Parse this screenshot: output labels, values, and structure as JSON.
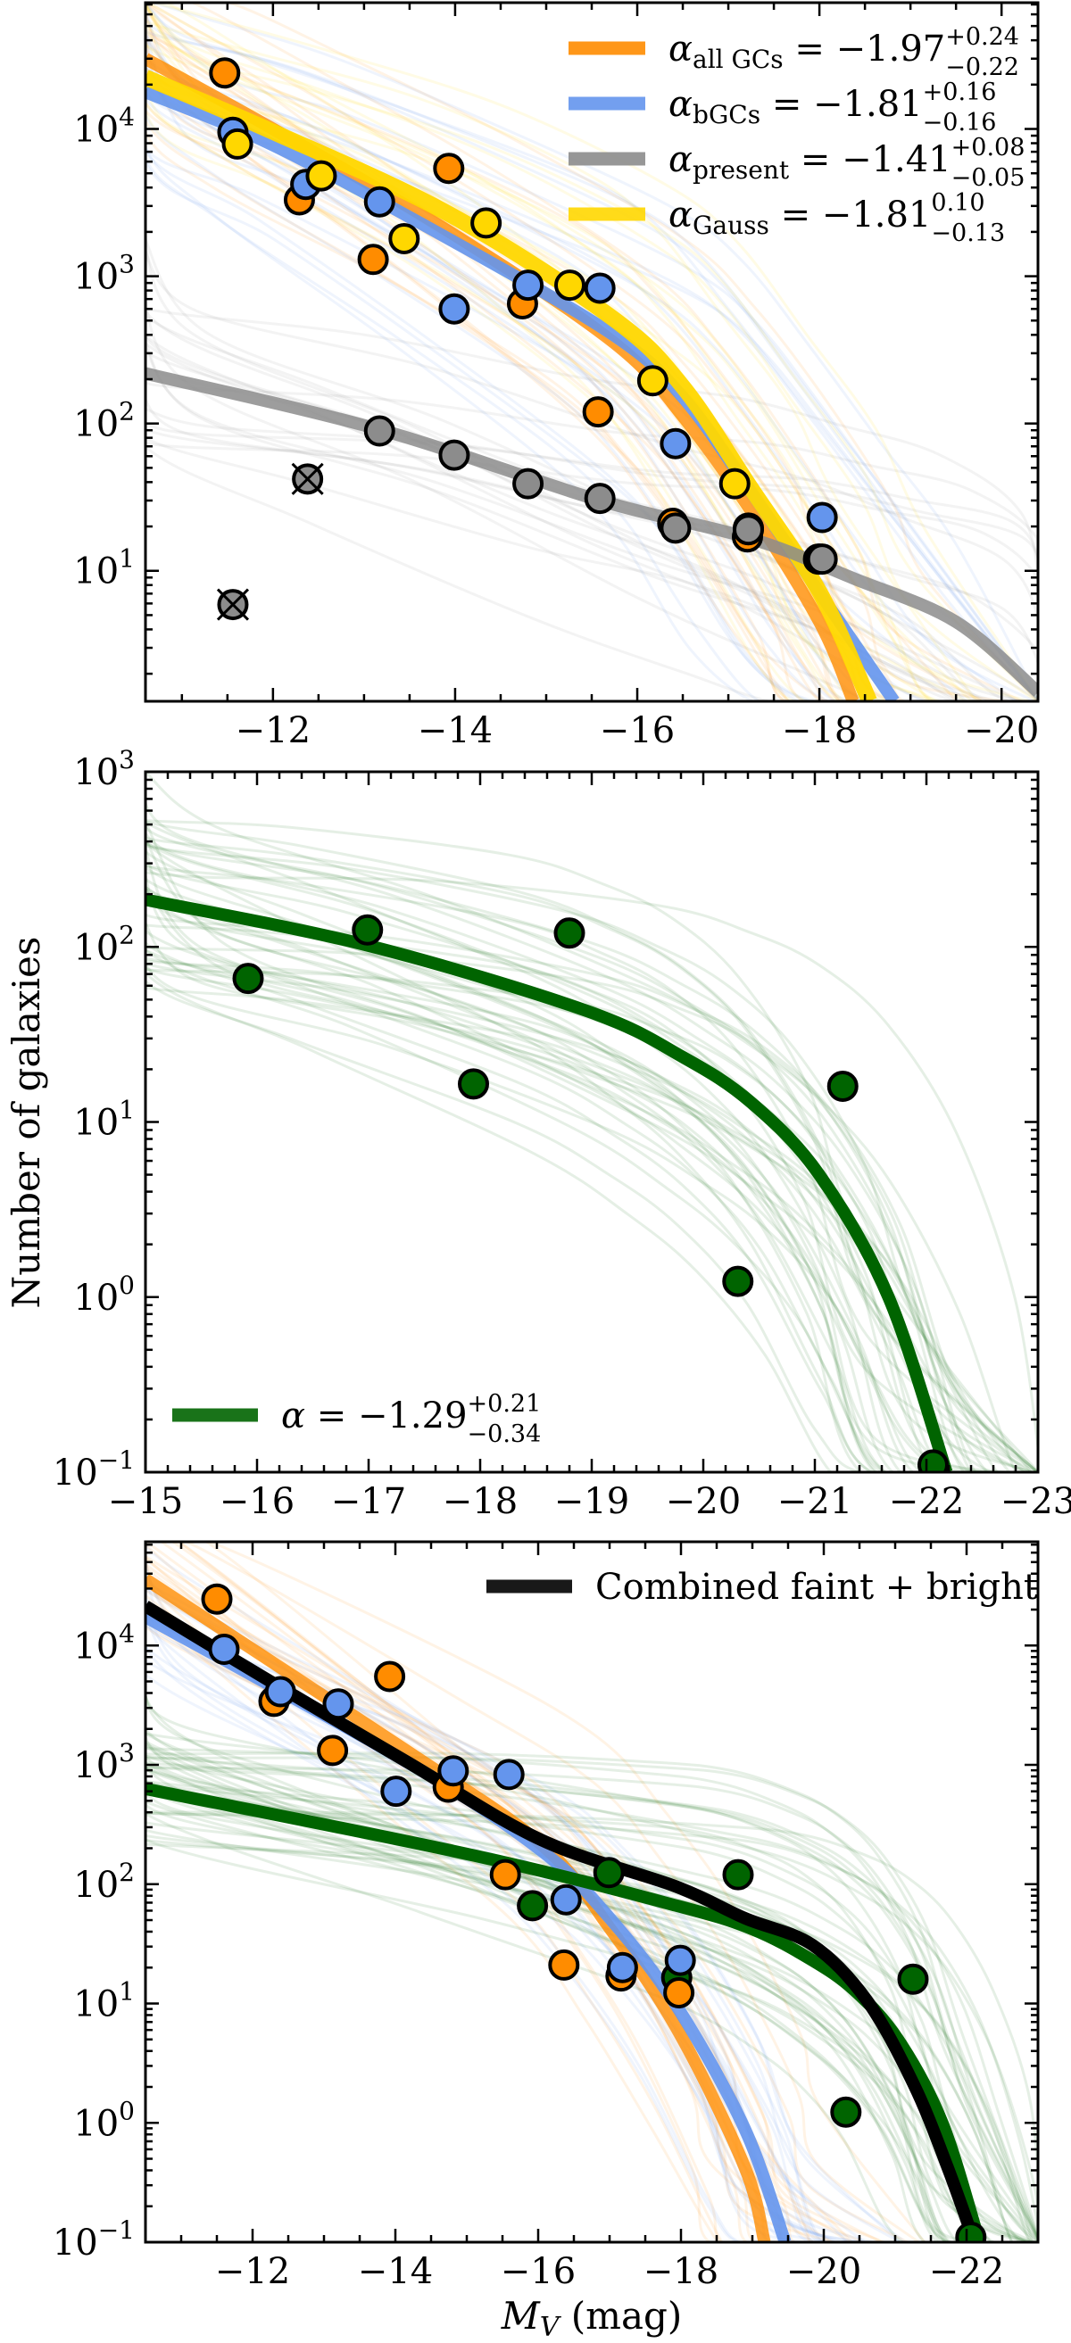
{
  "figure": {
    "ylabel": "Number of galaxies",
    "xlabel_main": "M",
    "xlabel_sub": "V",
    "xlabel_unit": " (mag)"
  },
  "colors": {
    "all_gcs": "#ff8c00",
    "bgcs": "#6495ed",
    "present": "#8c8c8c",
    "gauss": "#ffd700",
    "bright": "#006400",
    "combined": "#000000"
  },
  "chart_data": [
    {
      "type": "scatter+line",
      "xlim": [
        -10.6,
        -20.4
      ],
      "ylim": [
        1.3,
        72000
      ],
      "yscale": "log",
      "xticks": [
        -12,
        -14,
        -16,
        -18,
        -20
      ],
      "xtick_labels": [
        "−12",
        "−14",
        "−16",
        "−18",
        "−20"
      ],
      "yticks": [
        10,
        100,
        1000,
        10000
      ],
      "ytick_labels": [
        {
          "base": "10",
          "exp": "1"
        },
        {
          "base": "10",
          "exp": "2"
        },
        {
          "base": "10",
          "exp": "3"
        },
        {
          "base": "10",
          "exp": "4"
        }
      ],
      "legend_position": "top-right",
      "legend": [
        {
          "key": "all_gcs",
          "symbol": "α",
          "sub": "all GCs",
          "value": " = −1.97",
          "sup": "+0.24",
          "low": "−0.22"
        },
        {
          "key": "bgcs",
          "symbol": "α",
          "sub": "bGCs",
          "value": " = −1.81",
          "sup": "+0.16",
          "low": "−0.16"
        },
        {
          "key": "present",
          "symbol": "α",
          "sub": "present",
          "value": " = −1.41",
          "sup": "+0.08",
          "low": "−0.05"
        },
        {
          "key": "gauss",
          "symbol": "α",
          "sub": "Gauss",
          "value": " = −1.81",
          "sup": "0.10",
          "low": "−0.13"
        }
      ],
      "lines": [
        {
          "key": "all_gcs",
          "points": [
            [
              -10.6,
              30000
            ],
            [
              -12,
              10000
            ],
            [
              -13.94,
              2000
            ],
            [
              -15.74,
              355
            ],
            [
              -16.5,
              112
            ],
            [
              -17.24,
              26
            ],
            [
              -18,
              4.5
            ],
            [
              -18.37,
              1.3
            ]
          ]
        },
        {
          "key": "bgcs",
          "points": [
            [
              -10.6,
              17800
            ],
            [
              -12,
              7760
            ],
            [
              -13.94,
              1780
            ],
            [
              -15.74,
              398
            ],
            [
              -16.5,
              151
            ],
            [
              -17.24,
              35
            ],
            [
              -18,
              7.1
            ],
            [
              -18.82,
              1.3
            ]
          ]
        },
        {
          "key": "gauss",
          "points": [
            [
              -10.6,
              22400
            ],
            [
              -12,
              9550
            ],
            [
              -13.94,
              2630
            ],
            [
              -15.74,
              513
            ],
            [
              -16.5,
              178
            ],
            [
              -17.24,
              37
            ],
            [
              -18,
              7.2
            ],
            [
              -18.55,
              1.3
            ]
          ]
        },
        {
          "key": "present",
          "points": [
            [
              -10.6,
              219
            ],
            [
              -13.17,
              91
            ],
            [
              -15.59,
              30
            ],
            [
              -17.24,
              16.6
            ],
            [
              -18.37,
              8.9
            ],
            [
              -19.5,
              4.5
            ],
            [
              -20.4,
              1.5
            ]
          ]
        }
      ],
      "points": [
        {
          "key": "all_gcs",
          "x": [
            -11.47,
            -12.29,
            -13.1,
            -13.93,
            -14.74,
            -15.57,
            -16.39,
            -17.21,
            -17.99
          ],
          "y": [
            24000,
            3300,
            1300,
            5400,
            650,
            120,
            21,
            17,
            12
          ]
        },
        {
          "key": "bgcs",
          "x": [
            -11.56,
            -12.36,
            -13.17,
            -13.99,
            -14.8,
            -15.59,
            -16.42,
            -17.22,
            -18.03
          ],
          "y": [
            9500,
            4200,
            3200,
            600,
            870,
            830,
            73,
            19.5,
            23
          ]
        },
        {
          "key": "gauss",
          "x": [
            -11.61,
            -12.53,
            -13.44,
            -14.34,
            -15.26,
            -16.17,
            -17.07,
            -18.0
          ],
          "y": [
            7900,
            4800,
            1800,
            2300,
            870,
            195,
            39,
            12
          ]
        },
        {
          "key": "present",
          "x": [
            -13.17,
            -13.99,
            -14.8,
            -15.59,
            -16.42,
            -17.22,
            -18.03
          ],
          "y": [
            89,
            61,
            39,
            31,
            19.5,
            19,
            12
          ]
        },
        {
          "key": "present",
          "excluded": true,
          "x": [
            -11.56,
            -12.38
          ],
          "y": [
            5.9,
            42
          ]
        }
      ]
    },
    {
      "type": "scatter+line",
      "xlim": [
        -15,
        -23
      ],
      "ylim": [
        0.1,
        1000
      ],
      "yscale": "log",
      "xticks": [
        -15,
        -16,
        -17,
        -18,
        -19,
        -20,
        -21,
        -22,
        -23
      ],
      "xtick_labels": [
        "−15",
        "−16",
        "−17",
        "−18",
        "−19",
        "−20",
        "−21",
        "−22",
        "−23"
      ],
      "yticks": [
        0.1,
        1,
        10,
        100,
        1000
      ],
      "ytick_labels": [
        {
          "base": "10",
          "exp": "−1"
        },
        {
          "base": "10",
          "exp": "0"
        },
        {
          "base": "10",
          "exp": "1"
        },
        {
          "base": "10",
          "exp": "2"
        },
        {
          "base": "10",
          "exp": "3"
        }
      ],
      "legend_position": "bottom-left",
      "legend": [
        {
          "key": "bright",
          "symbol": "α",
          "sub": "",
          "value": " = −1.29",
          "sup": "+0.21",
          "low": "−0.34"
        }
      ],
      "lines": [
        {
          "key": "bright",
          "points": [
            [
              -15,
              186
            ],
            [
              -16.99,
              102
            ],
            [
              -18.96,
              43
            ],
            [
              -19.82,
              23.4
            ],
            [
              -20.43,
              12.9
            ],
            [
              -21.04,
              5.0
            ],
            [
              -21.66,
              1.0
            ],
            [
              -22.18,
              0.1
            ]
          ]
        }
      ],
      "points": [
        {
          "key": "bright",
          "x": [
            -15.92,
            -16.99,
            -17.94,
            -18.8,
            -20.31,
            -21.25,
            -22.06
          ],
          "y": [
            66,
            125,
            16.5,
            120,
            1.23,
            16,
            0.11
          ]
        }
      ]
    },
    {
      "type": "scatter+line",
      "xlim": [
        -10.5,
        -23
      ],
      "ylim": [
        0.1,
        74000
      ],
      "yscale": "log",
      "xticks": [
        -12,
        -14,
        -16,
        -18,
        -20,
        -22
      ],
      "xtick_labels": [
        "−12",
        "−14",
        "−16",
        "−18",
        "−20",
        "−22"
      ],
      "yticks": [
        0.1,
        1,
        10,
        100,
        1000,
        10000
      ],
      "ytick_labels": [
        {
          "base": "10",
          "exp": "−1"
        },
        {
          "base": "10",
          "exp": "0"
        },
        {
          "base": "10",
          "exp": "1"
        },
        {
          "base": "10",
          "exp": "2"
        },
        {
          "base": "10",
          "exp": "3"
        },
        {
          "base": "10",
          "exp": "4"
        }
      ],
      "legend_position": "top-right",
      "legend": [
        {
          "key": "combined",
          "text": "Combined faint + bright"
        }
      ],
      "lines": [
        {
          "key": "all_gcs",
          "points": [
            [
              -10.5,
              36000
            ],
            [
              -14.15,
              1320
            ],
            [
              -16.05,
              214
            ],
            [
              -17,
              43
            ],
            [
              -17.94,
              6.2
            ],
            [
              -18.89,
              0.43
            ],
            [
              -19.17,
              0.1
            ]
          ]
        },
        {
          "key": "bgcs",
          "points": [
            [
              -10.5,
              17400
            ],
            [
              -14.15,
              1070
            ],
            [
              -16.05,
              190
            ],
            [
              -17,
              52
            ],
            [
              -17.94,
              9.5
            ],
            [
              -18.89,
              0.9
            ],
            [
              -19.46,
              0.1
            ]
          ]
        },
        {
          "key": "bright",
          "points": [
            [
              -10.5,
              630
            ],
            [
              -15.1,
              174
            ],
            [
              -17.94,
              66
            ],
            [
              -19.0,
              42
            ],
            [
              -19.82,
              23.4
            ],
            [
              -20.43,
              12.9
            ],
            [
              -21.04,
              5.0
            ],
            [
              -21.66,
              1.0
            ],
            [
              -22.18,
              0.1
            ]
          ]
        },
        {
          "key": "combined",
          "points": [
            [
              -10.5,
              21400
            ],
            [
              -12.25,
              5000
            ],
            [
              -14.15,
              1070
            ],
            [
              -16.05,
              234
            ],
            [
              -17.94,
              95
            ],
            [
              -18.89,
              52
            ],
            [
              -19.84,
              31
            ],
            [
              -20.6,
              10.7
            ],
            [
              -21.26,
              2.1
            ],
            [
              -21.73,
              0.43
            ],
            [
              -22.11,
              0.1
            ]
          ]
        }
      ],
      "points": [
        {
          "key": "bright",
          "x": [
            -15.92,
            -16.99,
            -17.94,
            -18.8,
            -20.31,
            -21.25,
            -22.06
          ],
          "y": [
            66,
            125,
            16.5,
            120,
            1.23,
            16,
            0.11
          ]
        },
        {
          "key": "all_gcs",
          "x": [
            -11.5,
            -12.3,
            -13.12,
            -13.92,
            -14.74,
            -15.54,
            -16.36,
            -17.16,
            -17.97
          ],
          "y": [
            24500,
            3400,
            1320,
            5500,
            650,
            120,
            21,
            17,
            12.3
          ]
        },
        {
          "key": "bgcs",
          "x": [
            -11.6,
            -12.39,
            -13.2,
            -14.01,
            -14.81,
            -15.59,
            -16.39,
            -17.18,
            -17.99
          ],
          "y": [
            9300,
            4100,
            3240,
            600,
            890,
            830,
            74,
            20,
            23
          ]
        }
      ]
    }
  ]
}
